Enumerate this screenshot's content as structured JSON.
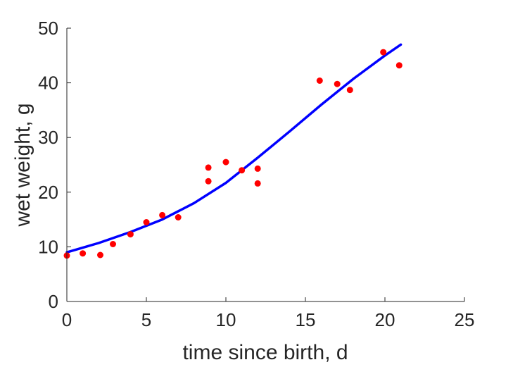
{
  "chart_data": {
    "type": "scatter",
    "xlabel": "time since birth, d",
    "ylabel": "wet weight, g",
    "xlim": [
      0,
      25
    ],
    "ylim": [
      0,
      50
    ],
    "xticks": [
      "0",
      "5",
      "10",
      "15",
      "20",
      "25"
    ],
    "yticks": [
      "0",
      "10",
      "20",
      "30",
      "40",
      "50"
    ],
    "grid": false,
    "series": [
      {
        "kind": "points",
        "color": "#ff0000",
        "points": [
          [
            0,
            8.4
          ],
          [
            1,
            8.8
          ],
          [
            2.1,
            8.5
          ],
          [
            2.9,
            10.5
          ],
          [
            4,
            12.3
          ],
          [
            5,
            14.5
          ],
          [
            6,
            15.8
          ],
          [
            7,
            15.4
          ],
          [
            8.9,
            24.5
          ],
          [
            8.9,
            22
          ],
          [
            10,
            25.5
          ],
          [
            11,
            24
          ],
          [
            12,
            24.3
          ],
          [
            12,
            21.6
          ],
          [
            15.9,
            40.4
          ],
          [
            17,
            39.8
          ],
          [
            17.8,
            38.7
          ],
          [
            19.9,
            45.6
          ],
          [
            20.9,
            43.2
          ]
        ]
      },
      {
        "kind": "line",
        "color": "#0000ff",
        "points": [
          [
            0,
            9.0
          ],
          [
            2,
            10.7
          ],
          [
            4,
            12.7
          ],
          [
            6,
            15.0
          ],
          [
            8,
            18.0
          ],
          [
            10,
            21.7
          ],
          [
            12,
            26.3
          ],
          [
            14,
            31.1
          ],
          [
            16,
            36.0
          ],
          [
            18,
            40.7
          ],
          [
            20,
            45.0
          ],
          [
            21,
            47.0
          ]
        ]
      }
    ]
  }
}
